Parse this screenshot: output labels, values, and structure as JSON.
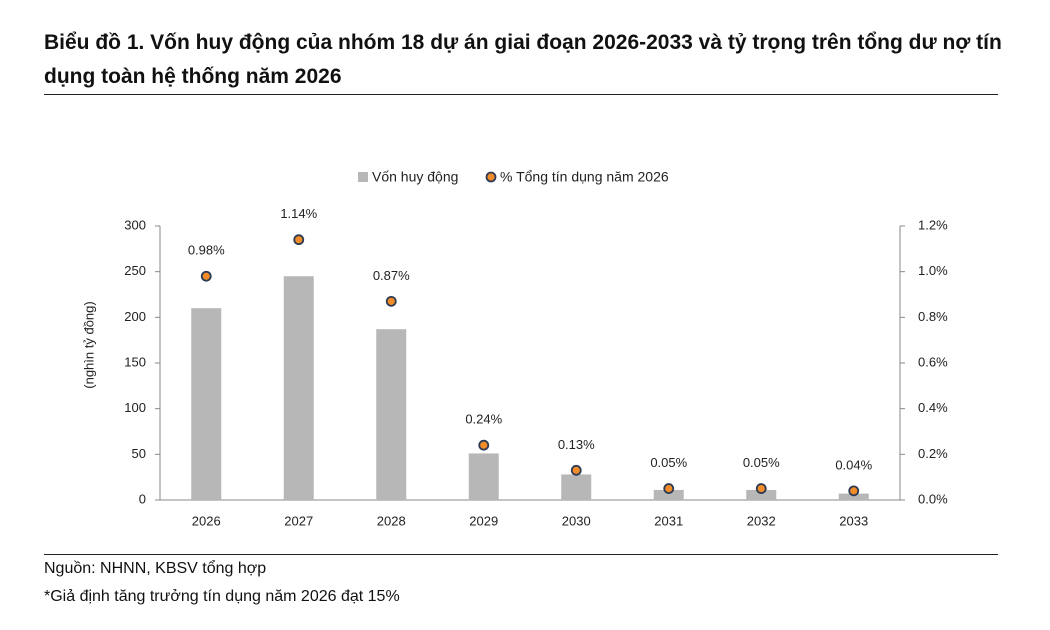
{
  "chart_data": {
    "type": "bar-dot",
    "title": "Biểu đồ 1. Vốn huy động của nhóm 18 dự án giai đoạn 2026-2033 và tỷ trọng trên tổng dư nợ tín dụng toàn hệ thống năm 2026",
    "y_label": "(nghìn tỷ đồng)",
    "categories": [
      "2026",
      "2027",
      "2028",
      "2029",
      "2030",
      "2031",
      "2032",
      "2033"
    ],
    "series": [
      {
        "name": "Vốn huy động",
        "color": "#b7b7b7",
        "values": [
          210,
          245,
          187,
          51,
          28,
          11,
          11,
          7
        ]
      },
      {
        "name": "% Tổng tín dụng năm 2026",
        "color": "#f28c28",
        "axis": "y2",
        "values": [
          0.98,
          1.14,
          0.87,
          0.24,
          0.13,
          0.05,
          0.05,
          0.04
        ],
        "value_labels": [
          "0.98%",
          "1.14%",
          "0.87%",
          "0.24%",
          "0.13%",
          "0.05%",
          "0.05%",
          "0.04%"
        ]
      }
    ],
    "ylim": [
      0,
      300
    ],
    "yticks": [
      0,
      50,
      100,
      150,
      200,
      250,
      300
    ],
    "y2lim": [
      0,
      1.2
    ],
    "y2ticks": [
      {
        "value": 0,
        "label": "0.0%"
      },
      {
        "value": 0.2,
        "label": "0.2%"
      },
      {
        "value": 0.4,
        "label": "0.4%"
      },
      {
        "value": 0.6,
        "label": "0.6%"
      },
      {
        "value": 0.8,
        "label": "0.8%"
      },
      {
        "value": 1.0,
        "label": "1.0%"
      },
      {
        "value": 1.2,
        "label": "1.2%"
      }
    ],
    "legend": "top",
    "source": "Nguồn: NHNN, KBSV tổng hợp",
    "note": "*Giả định tăng trưởng tín dụng năm 2026 đạt 15%"
  }
}
